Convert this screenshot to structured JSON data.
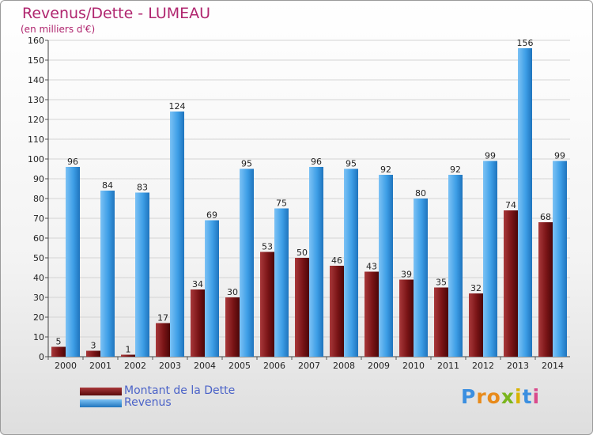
{
  "header": {
    "title": "Revenus/Dette - LUMEAU",
    "subtitle": "(en milliers d'€)"
  },
  "chart_data": {
    "type": "bar",
    "title": "Revenus/Dette - LUMEAU",
    "subtitle": "(en milliers d'€)",
    "categories": [
      "2000",
      "2001",
      "2002",
      "2003",
      "2004",
      "2005",
      "2006",
      "2007",
      "2008",
      "2009",
      "2010",
      "2011",
      "2012",
      "2013",
      "2014"
    ],
    "series": [
      {
        "name": "Montant de la Dette",
        "color": "#7a1416",
        "values": [
          5,
          3,
          1,
          17,
          34,
          30,
          53,
          50,
          46,
          43,
          39,
          35,
          32,
          74,
          68
        ]
      },
      {
        "name": "Revenus",
        "color": "#3d9ee6",
        "values": [
          96,
          84,
          83,
          124,
          69,
          95,
          75,
          96,
          95,
          92,
          80,
          92,
          99,
          156,
          99
        ]
      }
    ],
    "ylim": [
      0,
      160
    ],
    "yticks": [
      0,
      10,
      20,
      30,
      40,
      50,
      60,
      70,
      80,
      90,
      100,
      110,
      120,
      130,
      140,
      150,
      160
    ],
    "grid": true,
    "legend_position": "bottom-left"
  },
  "legend": {
    "items": [
      {
        "label": "Montant de la Dette",
        "color": "#7a1416"
      },
      {
        "label": "Revenus",
        "color": "#3d9ee6"
      }
    ]
  },
  "logo": {
    "letters": [
      "P",
      "r",
      "o",
      "x",
      "i",
      "t",
      "i"
    ],
    "colors": [
      "#3b8fe0",
      "#e88a1a",
      "#e88a1a",
      "#7ab51d",
      "#d8b300",
      "#3b8fe0",
      "#d94a8c"
    ]
  }
}
